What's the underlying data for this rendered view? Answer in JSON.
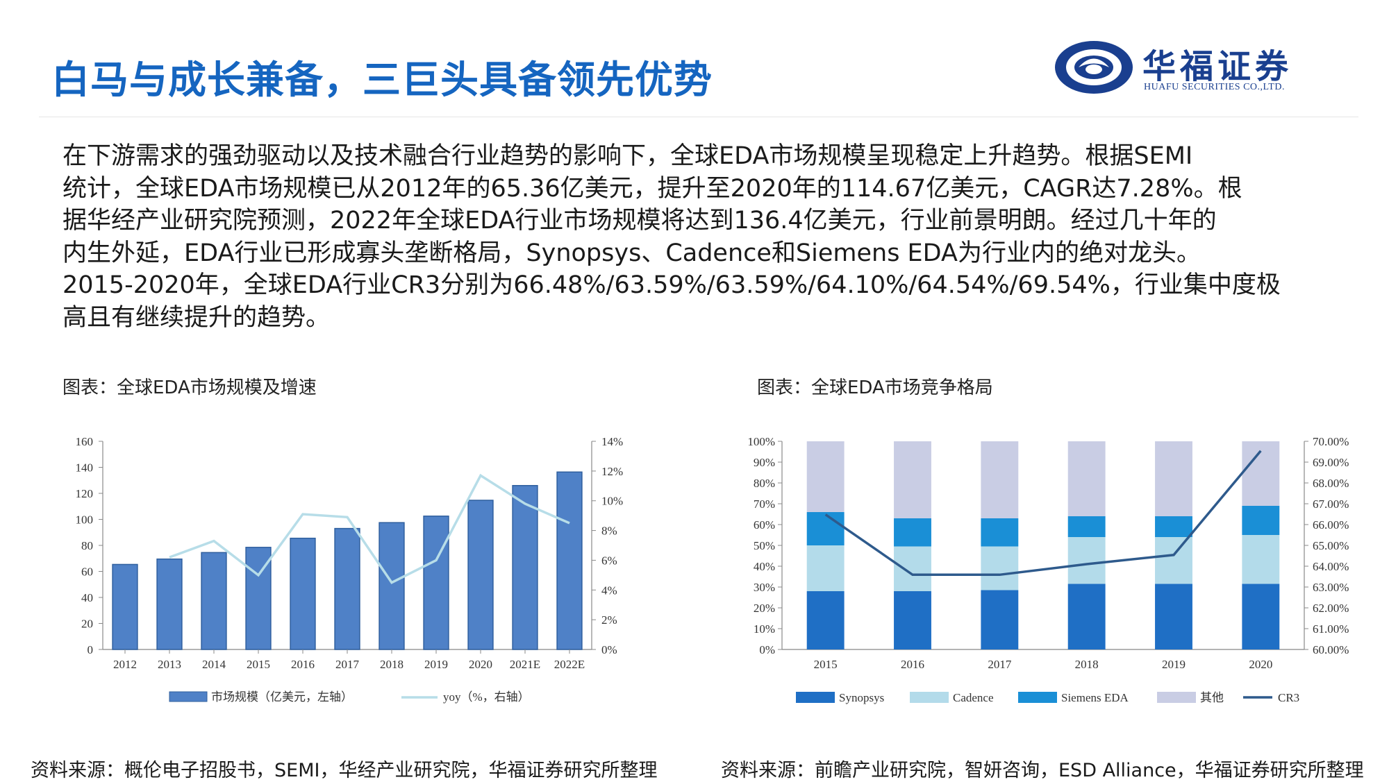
{
  "header": {
    "title": "白马与成长兼备，三巨头具备领先优势",
    "logo_cn": "华福证券",
    "logo_en": "HUAFU SECURITIES CO.,LTD."
  },
  "paragraph": [
    "在下游需求的强劲驱动以及技术融合行业趋势的影响下，全球EDA市场规模呈现稳定上升趋势。根据SEMI",
    "统计，全球EDA市场规模已从2012年的65.36亿美元，提升至2020年的114.67亿美元，CAGR达7.28%。根",
    "据华经产业研究院预测，2022年全球EDA行业市场规模将达到136.4亿美元，行业前景明朗。经过几十年的",
    "内生外延，EDA行业已形成寡头垄断格局，Synopsys、Cadence和Siemens EDA为行业内的绝对龙头。",
    "2015-2020年，全球EDA行业CR3分别为66.48%/63.59%/63.59%/64.10%/64.54%/69.54%，行业集中度极",
    "高且有继续提升的趋势。"
  ],
  "captions": {
    "left": "图表：全球EDA市场规模及增速",
    "right": "图表：全球EDA市场竞争格局"
  },
  "sources": {
    "left": "资料来源：概伦电子招股书，SEMI，华经产业研究院，华福证券研究所整理",
    "right": "资料来源：前瞻产业研究院，智妍咨询，ESD Alliance，华福证券研究所整理"
  },
  "colors": {
    "title": "#1565c0",
    "bar": "#4f81c7",
    "yoy": "#b7dde8",
    "synopsys": "#1f6fc5",
    "cadence": "#b3dbea",
    "siemens": "#1a8fd6",
    "others": "#c9cde4",
    "cr3": "#2e5a8c"
  },
  "chart_data": [
    {
      "type": "bar",
      "categories": [
        "2012",
        "2013",
        "2014",
        "2015",
        "2016",
        "2017",
        "2018",
        "2019",
        "2020",
        "2021E",
        "2022E"
      ],
      "series": [
        {
          "name": "市场规模（亿美元，左轴）",
          "values": [
            65.36,
            69.5,
            74.5,
            78.5,
            85.5,
            93.0,
            97.5,
            102.5,
            114.67,
            126.0,
            136.4
          ]
        },
        {
          "name": "yoy（%，右轴）",
          "type": "line",
          "axis": "right",
          "values": [
            null,
            6.2,
            7.3,
            5.0,
            9.1,
            8.9,
            4.5,
            6.0,
            11.7,
            9.8,
            8.5
          ]
        }
      ],
      "ylim": [
        0,
        160
      ],
      "yticks": [
        "0",
        "20",
        "40",
        "60",
        "80",
        "100",
        "120",
        "140",
        "160"
      ],
      "y2lim": [
        0,
        14
      ],
      "y2ticks": [
        "0%",
        "2%",
        "4%",
        "6%",
        "8%",
        "10%",
        "12%",
        "14%"
      ],
      "legend": "bottom"
    },
    {
      "type": "bar",
      "stacked": true,
      "categories": [
        "2015",
        "2016",
        "2017",
        "2018",
        "2019",
        "2020"
      ],
      "series": [
        {
          "name": "Synopsys",
          "values": [
            28,
            28,
            28.5,
            31.5,
            31.5,
            31.5
          ]
        },
        {
          "name": "Cadence",
          "values": [
            22,
            21.5,
            21,
            22.5,
            22.5,
            23.5
          ]
        },
        {
          "name": "Siemens EDA",
          "values": [
            16,
            13.5,
            13.5,
            10,
            10,
            14
          ]
        },
        {
          "name": "其他",
          "values": [
            34,
            37,
            37,
            36,
            36,
            31
          ]
        },
        {
          "name": "CR3",
          "type": "line",
          "axis": "right",
          "values": [
            66.48,
            63.59,
            63.59,
            64.1,
            64.54,
            69.54
          ]
        }
      ],
      "ylim": [
        0,
        100
      ],
      "yticks": [
        "0%",
        "10%",
        "20%",
        "30%",
        "40%",
        "50%",
        "60%",
        "70%",
        "80%",
        "90%",
        "100%"
      ],
      "y2lim": [
        60,
        70
      ],
      "y2ticks": [
        "60.00%",
        "61.00%",
        "62.00%",
        "63.00%",
        "64.00%",
        "65.00%",
        "66.00%",
        "67.00%",
        "68.00%",
        "69.00%",
        "70.00%"
      ],
      "legend": "bottom"
    }
  ]
}
